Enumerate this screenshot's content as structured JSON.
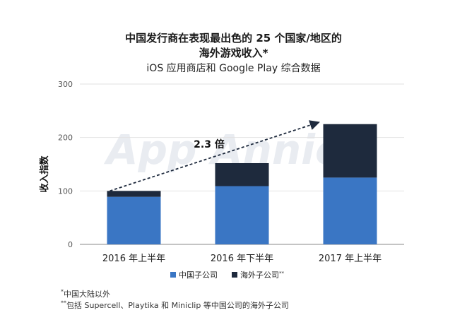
{
  "title_line1": "中国发行商在表现最出色的 25 个国家/地区的",
  "title_line2": "海外游戏收入*",
  "subtitle": "iOS 应用商店和 Google Play 综合数据",
  "watermark": "App Annie",
  "annotation": "2.3 倍",
  "note1": "中国大陆以外",
  "note1_marker": "*",
  "note2": "包括 Supercell、Playtika 和 Miniclip 等中国公司的海外子公司",
  "note2_marker": "**",
  "colors": {
    "subsidiary": "#3a76c4",
    "overseas": "#1e2a3d"
  },
  "chart_data": {
    "type": "bar",
    "stacked": true,
    "categories": [
      "2016 年上半年",
      "2016 年下半年",
      "2017 年上半年"
    ],
    "series": [
      {
        "name": "中国子公司",
        "values": [
          89,
          109,
          125
        ],
        "color": "#3a76c4"
      },
      {
        "name": "海外子公司",
        "values": [
          11,
          43,
          100
        ],
        "color": "#1e2a3d"
      }
    ],
    "ylabel": "收入指数",
    "ylim": [
      0,
      300
    ],
    "yticks": [
      0,
      100,
      200,
      300
    ],
    "grid": true,
    "legend_position": "bottom"
  }
}
